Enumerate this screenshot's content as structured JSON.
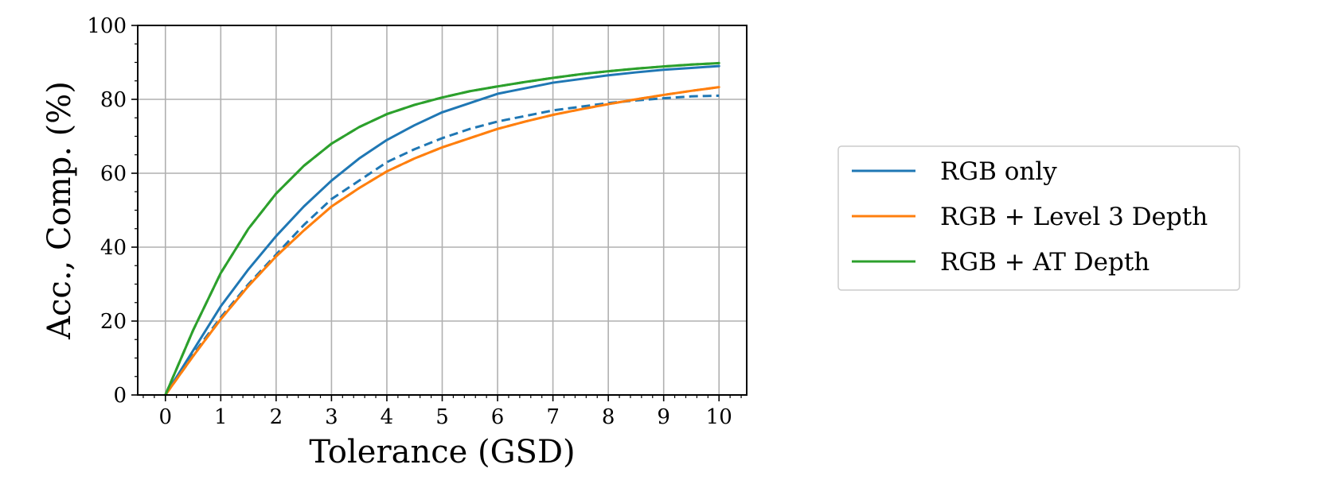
{
  "chart_data": {
    "type": "line",
    "title": "",
    "xlabel": "Tolerance (GSD)",
    "ylabel": "Acc., Comp. (%)",
    "xlim": [
      -0.5,
      10.5
    ],
    "ylim": [
      0,
      100
    ],
    "xticks": [
      0,
      1,
      2,
      3,
      4,
      5,
      6,
      7,
      8,
      9,
      10
    ],
    "yticks": [
      0,
      20,
      40,
      60,
      80,
      100
    ],
    "xtick_labels": [
      "0",
      "1",
      "2",
      "3",
      "4",
      "5",
      "6",
      "7",
      "8",
      "9",
      "10"
    ],
    "ytick_labels": [
      "0",
      "20",
      "40",
      "60",
      "80",
      "100"
    ],
    "grid": true,
    "legend_position": "right, outside plot",
    "x": [
      0,
      0.5,
      1,
      1.5,
      2,
      2.5,
      3,
      3.5,
      4,
      4.5,
      5,
      5.5,
      6,
      6.5,
      7,
      7.5,
      8,
      8.5,
      9,
      9.5,
      10
    ],
    "series": [
      {
        "name": "RGB only",
        "color": "#1f77b4",
        "style": "solid",
        "values": [
          0,
          12,
          24,
          34,
          43,
          51,
          58,
          64,
          69,
          73,
          76.5,
          79,
          81.5,
          83,
          84.5,
          85.5,
          86.5,
          87.3,
          88,
          88.5,
          89
        ]
      },
      {
        "name": "",
        "color": "#1f77b4",
        "style": "dashed",
        "values": [
          0,
          11,
          21,
          30,
          38,
          46,
          53,
          58,
          63,
          66.5,
          69.5,
          72,
          74,
          75.5,
          77,
          78,
          79,
          79.7,
          80.3,
          80.8,
          81
        ]
      },
      {
        "name": "RGB + Level 3 Depth",
        "color": "#ff7f0e",
        "style": "solid",
        "values": [
          0,
          10.5,
          20.5,
          29.5,
          37.5,
          44.5,
          51,
          56,
          60.5,
          64,
          67,
          69.5,
          72,
          74,
          75.8,
          77.3,
          78.7,
          80,
          81.2,
          82.3,
          83.3
        ]
      },
      {
        "name": "",
        "color": "#ff7f0e",
        "style": "dashed",
        "values": [
          0,
          10.5,
          20.5,
          29.5,
          37.5,
          44.5,
          51,
          56,
          60.5,
          64,
          67,
          69.5,
          72,
          74,
          75.8,
          77.3,
          78.7,
          80,
          81.2,
          82.3,
          83.3
        ]
      },
      {
        "name": "RGB + AT Depth",
        "color": "#2ca02c",
        "style": "solid",
        "values": [
          0,
          17.5,
          33,
          45,
          54.5,
          62,
          68,
          72.5,
          76,
          78.5,
          80.5,
          82.2,
          83.5,
          84.7,
          85.8,
          86.8,
          87.6,
          88.3,
          88.9,
          89.4,
          89.8
        ]
      },
      {
        "name": "",
        "color": "#2ca02c",
        "style": "dashed",
        "values": [
          0,
          17.5,
          33,
          45,
          54.5,
          62,
          68,
          72.5,
          76,
          78.5,
          80.5,
          82.2,
          83.5,
          84.7,
          85.8,
          86.8,
          87.6,
          88.3,
          88.9,
          89.4,
          89.8
        ]
      }
    ],
    "legend": [
      {
        "label": "RGB only",
        "color": "#1f77b4"
      },
      {
        "label": "RGB + Level 3 Depth",
        "color": "#ff7f0e"
      },
      {
        "label": "RGB + AT Depth",
        "color": "#2ca02c"
      }
    ]
  }
}
